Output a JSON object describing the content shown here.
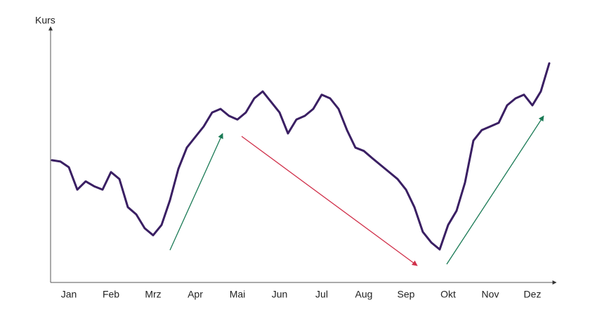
{
  "chart_data": {
    "type": "line",
    "y_label": "Kurs",
    "categories": [
      null,
      null,
      "Jan",
      null,
      null,
      null,
      null,
      "Feb",
      null,
      null,
      null,
      null,
      "Mrz",
      null,
      null,
      null,
      null,
      "Apr",
      null,
      null,
      null,
      null,
      "Mai",
      null,
      null,
      null,
      null,
      "Jun",
      null,
      null,
      null,
      null,
      "Jul",
      null,
      null,
      null,
      null,
      "Aug",
      null,
      null,
      null,
      null,
      "Sep",
      null,
      null,
      null,
      null,
      "Okt",
      null,
      null,
      null,
      null,
      "Nov",
      null,
      null,
      null,
      null,
      "Dez",
      null,
      null
    ],
    "values": [
      47.4,
      46.9,
      44.7,
      36.0,
      39.2,
      37.3,
      36.0,
      42.8,
      40.1,
      29.2,
      26.4,
      21.0,
      18.3,
      22.3,
      31.9,
      44.1,
      52.3,
      56.4,
      60.5,
      65.9,
      67.3,
      64.6,
      63.2,
      65.9,
      71.4,
      74.1,
      70.0,
      65.9,
      57.8,
      63.2,
      64.6,
      67.3,
      72.8,
      71.4,
      67.3,
      59.1,
      52.3,
      51.0,
      48.2,
      45.5,
      42.8,
      40.1,
      36.0,
      29.2,
      19.6,
      15.5,
      12.8,
      22.3,
      27.8,
      38.7,
      55.0,
      59.1,
      60.5,
      61.9,
      68.7,
      71.4,
      72.8,
      68.7,
      74.1,
      85.0
    ],
    "color": "#3a1f63",
    "ylim": [
      0,
      100
    ]
  }
}
